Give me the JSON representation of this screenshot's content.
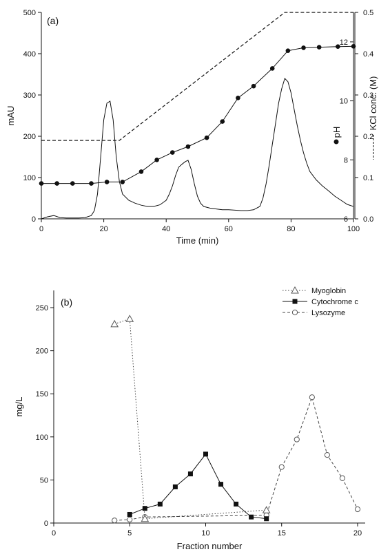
{
  "chart_data": [
    {
      "type": "line",
      "panel_label": "(a)",
      "xlabel": "Time (min)",
      "ylabel": "mAU",
      "y2label": "pH",
      "y3label": "KCl conc. (M)",
      "xlim": [
        0,
        100
      ],
      "ylim": [
        0,
        500
      ],
      "y2lim": [
        6,
        13
      ],
      "y3lim": [
        0,
        0.5
      ],
      "x_ticks": [
        0,
        20,
        40,
        60,
        80,
        100
      ],
      "y_ticks": [
        0,
        100,
        200,
        300,
        400,
        500
      ],
      "y2_ticks": [
        6,
        8,
        10,
        12
      ],
      "y3_ticks": [
        0.0,
        0.1,
        0.2,
        0.3,
        0.4,
        0.5
      ],
      "series": [
        {
          "axis": "mAU",
          "style": "solid",
          "x": [
            0,
            2,
            4,
            6,
            8,
            10,
            12,
            14,
            16,
            17,
            18,
            19,
            20,
            21,
            22,
            23,
            24,
            25,
            26,
            28,
            30,
            32,
            34,
            36,
            38,
            40,
            41,
            42,
            43,
            44,
            45,
            46,
            47,
            48,
            49,
            50,
            51,
            52,
            54,
            56,
            58,
            60,
            62,
            64,
            66,
            68,
            70,
            71,
            72,
            73,
            74,
            75,
            76,
            77,
            78,
            79,
            80,
            81,
            82,
            83,
            84,
            85,
            86,
            88,
            90,
            92,
            94,
            96,
            98,
            100
          ],
          "y": [
            0,
            5,
            8,
            3,
            2,
            2,
            2,
            3,
            8,
            20,
            60,
            150,
            240,
            280,
            285,
            240,
            150,
            90,
            60,
            45,
            38,
            33,
            30,
            30,
            34,
            45,
            60,
            80,
            105,
            125,
            132,
            138,
            142,
            120,
            85,
            55,
            38,
            30,
            26,
            24,
            22,
            22,
            21,
            20,
            20,
            22,
            30,
            50,
            85,
            130,
            180,
            230,
            280,
            315,
            340,
            332,
            305,
            265,
            225,
            190,
            160,
            135,
            115,
            95,
            80,
            68,
            55,
            45,
            35,
            30
          ]
        },
        {
          "name": "pH",
          "axis": "pH",
          "style": "line-markers",
          "marker": "filled-circle",
          "x": [
            0,
            5,
            10,
            16,
            21,
            26,
            32,
            37,
            42,
            47,
            53,
            58,
            63,
            68,
            74,
            79,
            84,
            89,
            95,
            100
          ],
          "y": [
            7.2,
            7.2,
            7.2,
            7.2,
            7.25,
            7.25,
            7.6,
            8.0,
            8.25,
            8.45,
            8.75,
            9.3,
            10.1,
            10.5,
            11.1,
            11.7,
            11.8,
            11.82,
            11.84,
            11.85
          ]
        },
        {
          "name": "KCl conc. (M)",
          "axis": "KCl",
          "style": "dashed",
          "x": [
            0,
            25,
            78,
            100
          ],
          "y": [
            0.19,
            0.19,
            0.5,
            0.5
          ]
        }
      ]
    },
    {
      "type": "line",
      "panel_label": "(b)",
      "xlabel": "Fraction number",
      "ylabel": "mg/L",
      "xlim": [
        0,
        20.5
      ],
      "ylim": [
        0,
        270
      ],
      "x_ticks": [
        0,
        5,
        10,
        15,
        20
      ],
      "y_ticks": [
        0,
        50,
        100,
        150,
        200,
        250
      ],
      "legend_position": "top-right",
      "series": [
        {
          "name": "Myoglobin",
          "style": "dotted",
          "marker": "open-triangle",
          "x": [
            4,
            5,
            6,
            14
          ],
          "y": [
            231,
            237,
            5,
            15
          ]
        },
        {
          "name": "Cytochrome c",
          "style": "solid",
          "marker": "filled-square",
          "x": [
            5,
            6,
            7,
            8,
            9,
            10,
            11,
            12,
            13,
            14
          ],
          "y": [
            10,
            17,
            22,
            42,
            57,
            80,
            45,
            22,
            7,
            5
          ]
        },
        {
          "name": "Lysozyme",
          "style": "dashed",
          "marker": "open-circle",
          "x": [
            4,
            5,
            6,
            14,
            15,
            16,
            17,
            18,
            19,
            20
          ],
          "y": [
            3,
            4,
            7,
            9,
            65,
            97,
            146,
            79,
            52,
            16
          ]
        }
      ]
    }
  ]
}
